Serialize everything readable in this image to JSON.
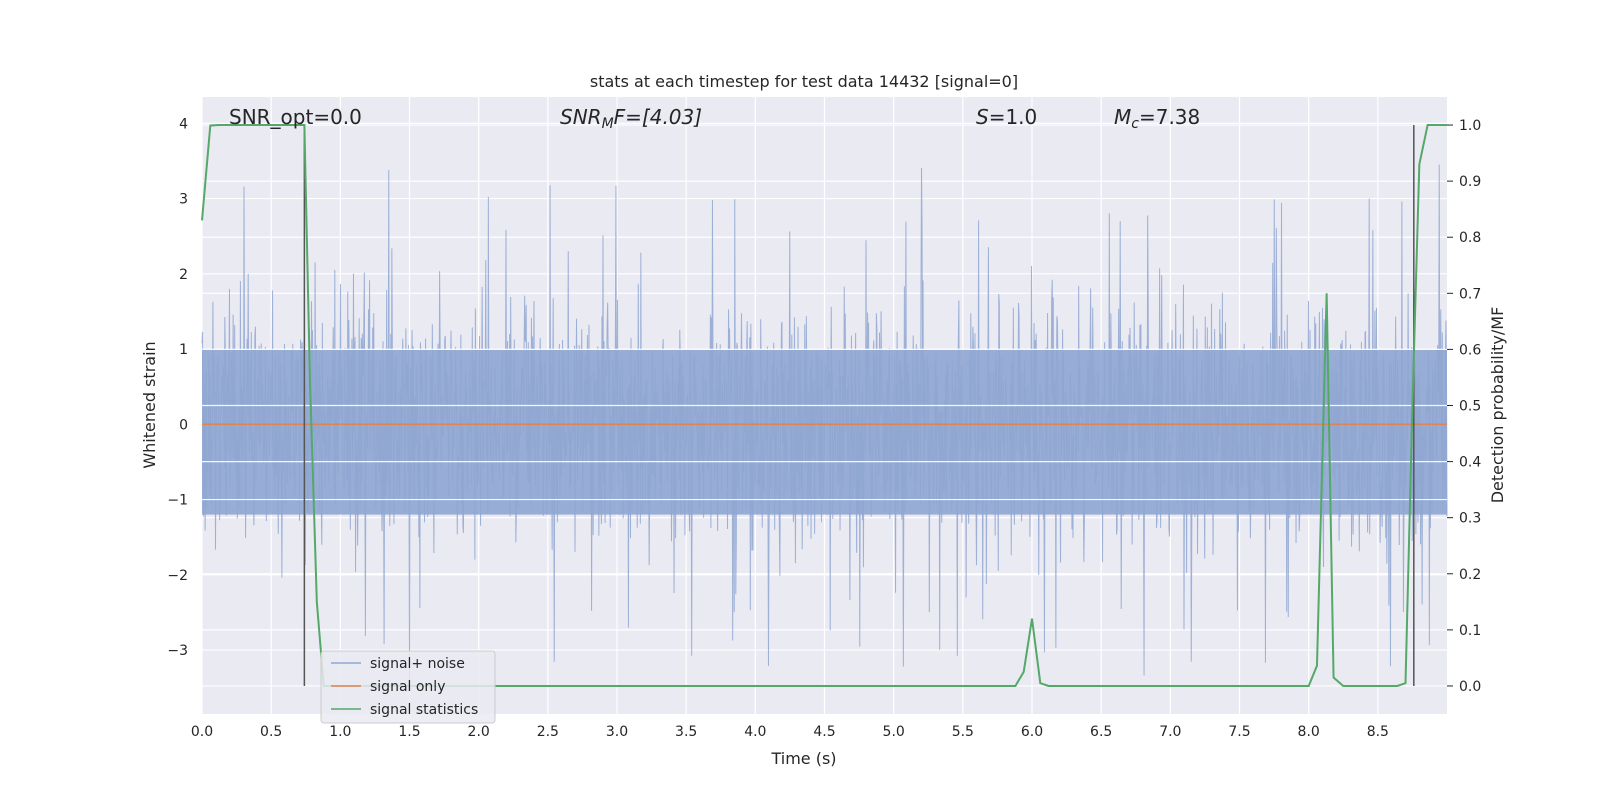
{
  "chart_data": {
    "type": "line",
    "title": "stats at each timestep for test data 14432 [signal=0]",
    "xlabel": "Time (s)",
    "ylabel_left": "Whitened strain",
    "ylabel_right": "Detection probability/MF",
    "xlim": [
      0.0,
      9.0
    ],
    "ylim_left": [
      -3.85,
      4.35
    ],
    "ylim_right": [
      -0.05,
      1.05
    ],
    "x_ticks": [
      "0.0",
      "0.5",
      "1.0",
      "1.5",
      "2.0",
      "2.5",
      "3.0",
      "3.5",
      "4.0",
      "4.5",
      "5.0",
      "5.5",
      "6.0",
      "6.5",
      "7.0",
      "7.5",
      "8.0",
      "8.5"
    ],
    "y_ticks_left": [
      "−3",
      "−2",
      "−1",
      "0",
      "1",
      "2",
      "3",
      "4"
    ],
    "y_ticks_right": [
      "0.0",
      "0.1",
      "0.2",
      "0.3",
      "0.4",
      "0.5",
      "0.6",
      "0.7",
      "0.8",
      "0.9",
      "1.0"
    ],
    "grid": true,
    "legend_placement": "lower-left",
    "annotations": {
      "snr_opt": "SNR_opt=0.0",
      "snr_mf_main": "SNR",
      "snr_mf_sub": "M",
      "snr_mf_rest": "F=[4.03]",
      "s_main": "S",
      "s_rest": "=1.0",
      "mc_main": "M",
      "mc_sub": "c",
      "mc_rest": "=7.38"
    },
    "series": [
      {
        "name": "signal+ noise",
        "color": "#8fa6d1",
        "amplitude_range": [
          -3.5,
          4.0
        ],
        "typical_band": [
          -1.2,
          1.0
        ]
      },
      {
        "name": "signal only",
        "color": "#dd8452",
        "y_left": 0.0
      },
      {
        "name": "signal statistics",
        "color": "#55a868",
        "x": [
          0.0,
          0.06,
          0.12,
          0.2,
          0.3,
          0.5,
          0.7,
          0.74,
          0.78,
          0.83,
          0.88,
          0.95,
          1.2,
          2.0,
          3.0,
          4.0,
          5.0,
          5.88,
          5.94,
          6.0,
          6.06,
          6.12,
          6.3,
          7.0,
          8.0,
          8.06,
          8.13,
          8.18,
          8.25,
          8.4,
          8.64,
          8.7,
          8.75,
          8.8,
          8.86,
          8.92,
          9.0
        ],
        "y_right": [
          0.83,
          0.999,
          1.0,
          1.0,
          1.0,
          1.0,
          1.0,
          1.0,
          0.55,
          0.15,
          0.0,
          0.0,
          0.0,
          0.0,
          0.0,
          0.0,
          0.0,
          0.0,
          0.025,
          0.12,
          0.005,
          0.0,
          0.0,
          0.0,
          0.0,
          0.036,
          0.7,
          0.015,
          0.0,
          0.0,
          0.0,
          0.005,
          0.5,
          0.93,
          1.0,
          1.0,
          1.0
        ]
      }
    ],
    "vertical_markers": [
      0.74,
      8.76
    ]
  }
}
